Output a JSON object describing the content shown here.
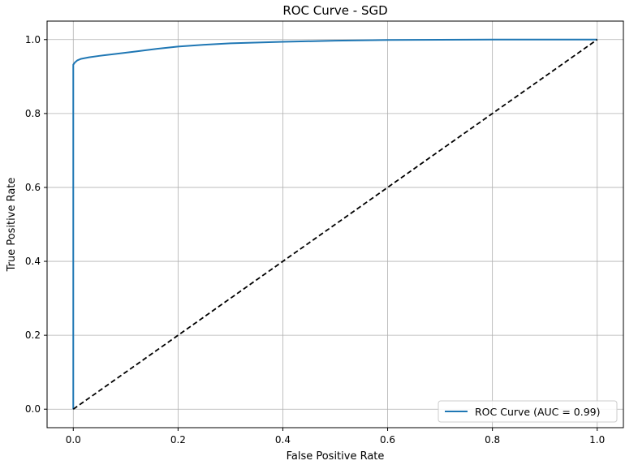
{
  "chart_data": {
    "type": "line",
    "title": "ROC Curve - SGD",
    "xlabel": "False Positive Rate",
    "ylabel": "True Positive Rate",
    "xlim": [
      -0.05,
      1.05
    ],
    "ylim": [
      -0.05,
      1.05
    ],
    "xticks": [
      0.0,
      0.2,
      0.4,
      0.6,
      0.8,
      1.0
    ],
    "yticks": [
      0.0,
      0.2,
      0.4,
      0.6,
      0.8,
      1.0
    ],
    "xtick_labels": [
      "0.0",
      "0.2",
      "0.4",
      "0.6",
      "0.8",
      "1.0"
    ],
    "ytick_labels": [
      "0.0",
      "0.2",
      "0.4",
      "0.6",
      "0.8",
      "1.0"
    ],
    "grid": true,
    "legend_position": "lower-right",
    "series": [
      {
        "name": "ROC Curve (AUC = 0.99)",
        "color": "#1f77b4",
        "style": "solid",
        "x": [
          0.0,
          0.0,
          0.0,
          0.003,
          0.008,
          0.015,
          0.03,
          0.05,
          0.08,
          0.12,
          0.16,
          0.2,
          0.25,
          0.3,
          0.4,
          0.5,
          0.6,
          0.7,
          0.8,
          0.9,
          1.0
        ],
        "y": [
          0.0,
          0.5,
          0.932,
          0.938,
          0.944,
          0.948,
          0.952,
          0.956,
          0.961,
          0.968,
          0.975,
          0.981,
          0.986,
          0.99,
          0.994,
          0.997,
          0.999,
          0.9995,
          1.0,
          1.0,
          1.0
        ]
      },
      {
        "name": "",
        "color": "#000000",
        "style": "dashed",
        "x": [
          0.0,
          1.0
        ],
        "y": [
          0.0,
          1.0
        ]
      }
    ]
  }
}
